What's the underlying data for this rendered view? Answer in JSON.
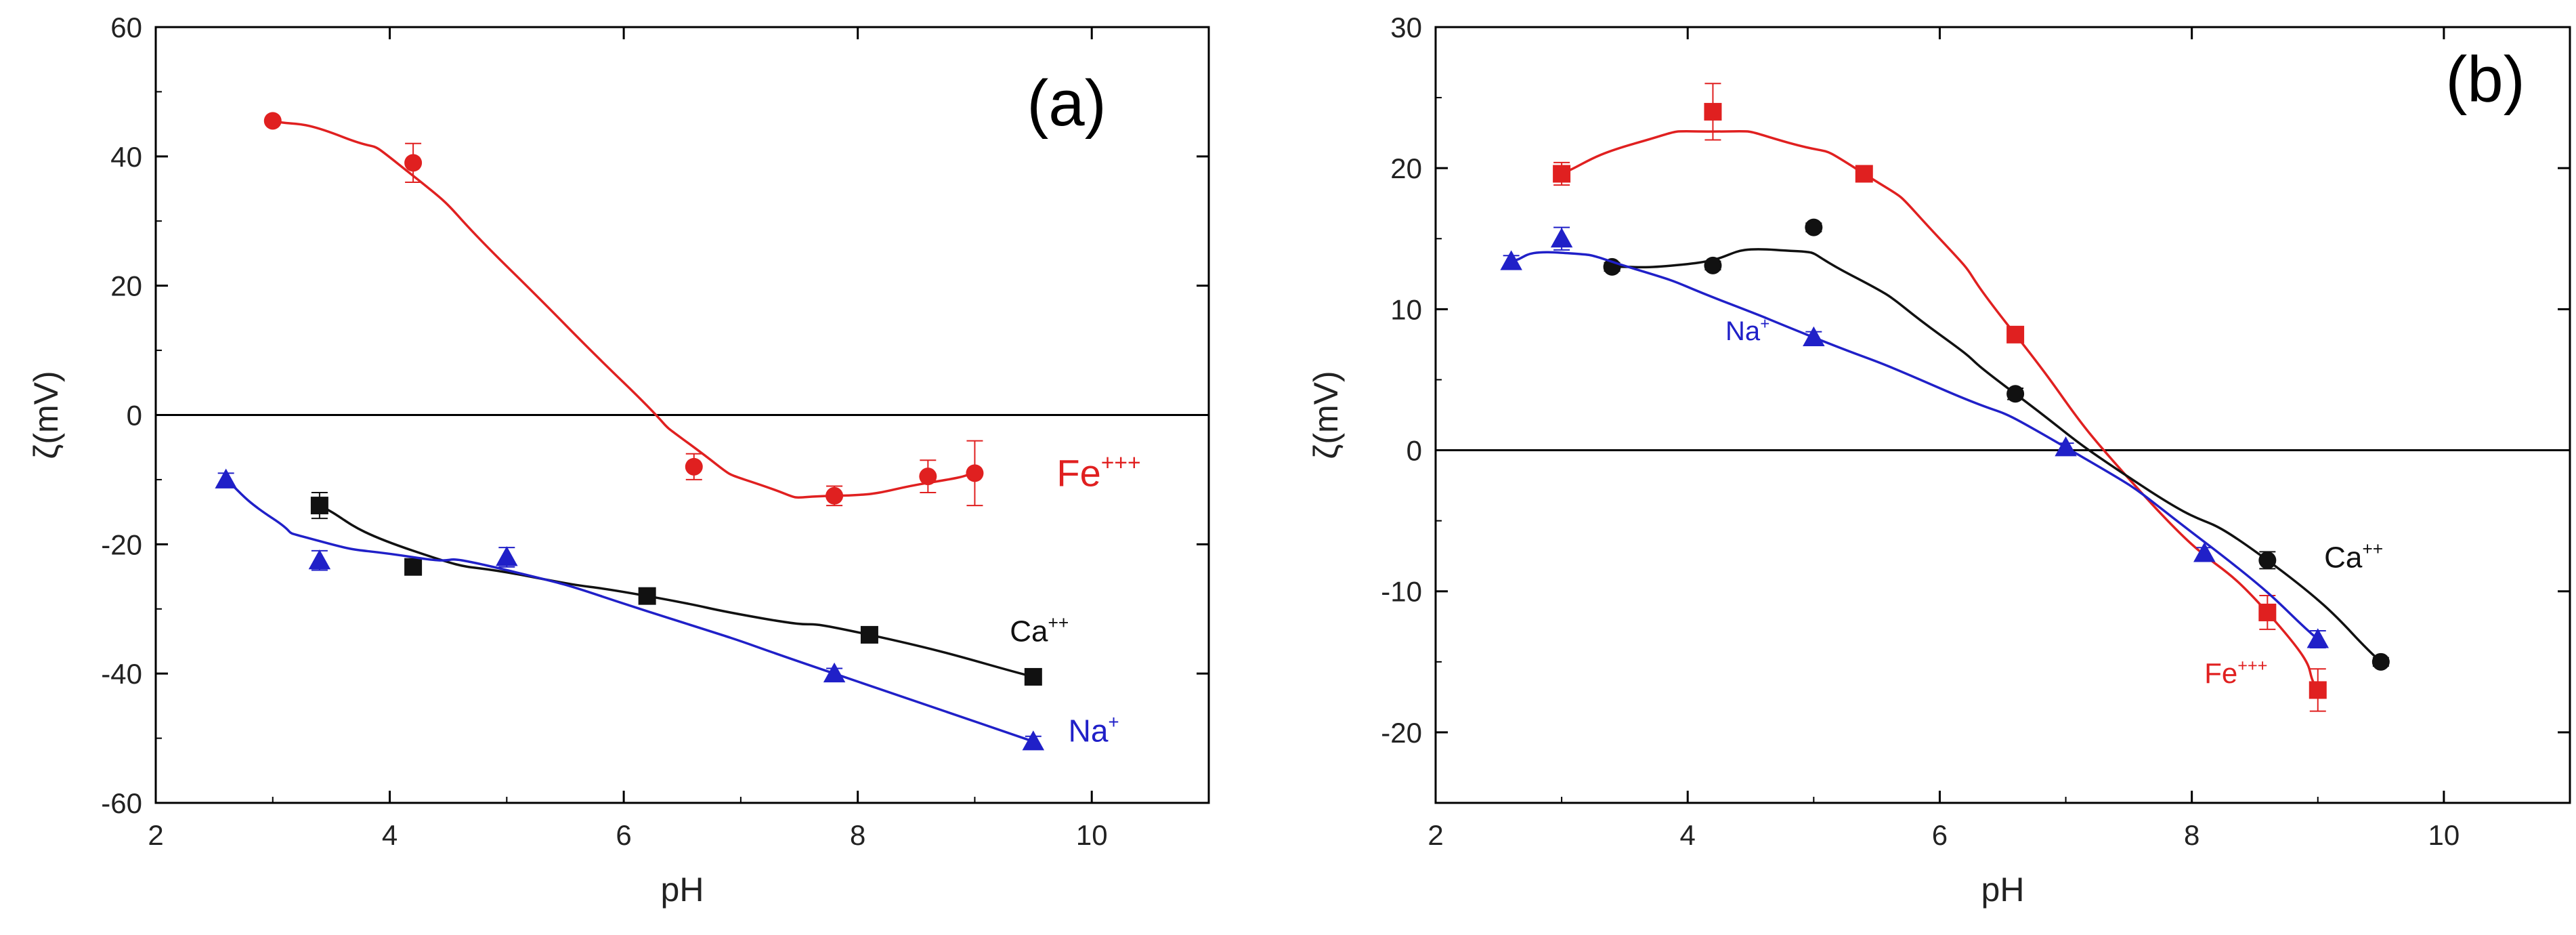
{
  "colors": {
    "fe": "#e02020",
    "ca": "#111111",
    "na": "#2020c8",
    "axis": "#000000"
  },
  "chart_data": [
    {
      "id": "a",
      "type": "scatter",
      "panel_label": "(a)",
      "xlabel": "pH",
      "ylabel": "ζ(mV)",
      "xlim": [
        2,
        11
      ],
      "ylim": [
        -60,
        60
      ],
      "xticks": [
        2,
        4,
        6,
        8,
        10
      ],
      "yticks": [
        -60,
        -40,
        -20,
        0,
        20,
        40,
        60
      ],
      "zero_line": true,
      "series": [
        {
          "name": "Fe+++",
          "label_base": "Fe",
          "label_sup": "+++",
          "marker": "circle",
          "color": "#e02020",
          "x": [
            3.0,
            4.2,
            6.6,
            7.8,
            8.6,
            9.0
          ],
          "y": [
            45.5,
            39,
            -8,
            -12.5,
            -9.5,
            -9
          ],
          "err": [
            0,
            3,
            2,
            1.5,
            2.5,
            5
          ],
          "curve_x": [
            3.0,
            3.6,
            4.2,
            5.0,
            6.0,
            6.6,
            7.2,
            7.8,
            8.6,
            9.0
          ],
          "curve_y": [
            45.5,
            43,
            37,
            23,
            5,
            -5,
            -11,
            -12.5,
            -10.5,
            -9
          ],
          "label_pos": [
            9.7,
            -11
          ],
          "label_size": 56
        },
        {
          "name": "Ca++",
          "label_base": "Ca",
          "label_sup": "++",
          "marker": "square",
          "color": "#111111",
          "x": [
            3.4,
            4.2,
            6.2,
            8.1,
            9.5
          ],
          "y": [
            -14,
            -23.5,
            -28,
            -34,
            -40.5
          ],
          "err": [
            2,
            1,
            0.8,
            0.8,
            0.8
          ],
          "curve_x": [
            3.4,
            4.2,
            5.2,
            6.2,
            7.2,
            8.1,
            9.5
          ],
          "curve_y": [
            -14,
            -21,
            -25,
            -28,
            -31.5,
            -34,
            -40.5
          ],
          "label_pos": [
            9.3,
            -35
          ],
          "label_size": 44
        },
        {
          "name": "Na+",
          "label_base": "Na",
          "label_sup": "+",
          "marker": "triangle",
          "color": "#2020c8",
          "x": [
            2.6,
            3.4,
            5.0,
            7.8,
            9.5
          ],
          "y": [
            -10,
            -22.5,
            -22,
            -40,
            -50.5
          ],
          "err": [
            1,
            1.5,
            1.5,
            0.8,
            0.8
          ],
          "curve_x": [
            2.6,
            3.0,
            3.4,
            4.2,
            5.0,
            6.4,
            7.8,
            9.5
          ],
          "curve_y": [
            -10,
            -16,
            -19.5,
            -22,
            -24,
            -31.5,
            -40,
            -50.5
          ],
          "label_pos": [
            9.8,
            -50.5
          ],
          "label_size": 46
        }
      ]
    },
    {
      "id": "b",
      "type": "scatter",
      "panel_label": "(b)",
      "xlabel": "pH",
      "ylabel": "ζ(mV)",
      "xlim": [
        2,
        11
      ],
      "ylim": [
        -25,
        30
      ],
      "xticks": [
        2,
        4,
        6,
        8,
        10
      ],
      "yticks": [
        -20,
        -10,
        0,
        10,
        20,
        30
      ],
      "zero_line": true,
      "series": [
        {
          "name": "Fe+++",
          "label_base": "Fe",
          "label_sup": "+++",
          "marker": "square",
          "color": "#e02020",
          "x": [
            3.0,
            4.2,
            5.4,
            6.6,
            8.6,
            9.0
          ],
          "y": [
            19.6,
            24,
            19.6,
            8.2,
            -11.5,
            -17
          ],
          "err": [
            0.8,
            2,
            0.5,
            0.5,
            1.2,
            1.5
          ],
          "curve_x": [
            3.0,
            3.6,
            4.2,
            4.8,
            5.4,
            6.0,
            6.6,
            7.6,
            8.6,
            9.0
          ],
          "curve_y": [
            19.6,
            21.8,
            22.6,
            21.8,
            19.6,
            15,
            8.2,
            -3,
            -11.5,
            -17
          ],
          "label_pos": [
            8.1,
            -16.5
          ],
          "label_size": 42
        },
        {
          "name": "Ca++",
          "label_base": "Ca",
          "label_sup": "++",
          "marker": "circle",
          "color": "#111111",
          "x": [
            3.4,
            4.2,
            5.0,
            6.6,
            8.6,
            9.5
          ],
          "y": [
            13,
            13.1,
            15.8,
            4,
            -7.8,
            -15
          ],
          "err": [
            0.3,
            0.3,
            0.3,
            0.4,
            0.6,
            0.3
          ],
          "curve_x": [
            3.4,
            4.0,
            4.7,
            5.3,
            6.0,
            6.6,
            7.6,
            8.6,
            9.5
          ],
          "curve_y": [
            13,
            13.2,
            14.2,
            12.4,
            8.2,
            4,
            -2.5,
            -7.8,
            -15
          ],
          "label_pos": [
            9.05,
            -8.3
          ],
          "label_size": 44
        },
        {
          "name": "Na+",
          "label_base": "Na",
          "label_sup": "+",
          "marker": "triangle",
          "color": "#2020c8",
          "x": [
            2.6,
            3.0,
            5.0,
            7.0,
            8.1,
            9.0
          ],
          "y": [
            13.4,
            15,
            8,
            0.2,
            -7.3,
            -13.4
          ],
          "err": [
            0.4,
            0.8,
            0.4,
            0.3,
            0.4,
            0.6
          ],
          "curve_x": [
            2.6,
            3.0,
            3.6,
            4.3,
            5.0,
            6.0,
            7.0,
            8.1,
            9.0
          ],
          "curve_y": [
            13.4,
            14,
            12.8,
            10.5,
            8,
            4.4,
            0.2,
            -6.5,
            -13.4
          ],
          "label_pos": [
            4.3,
            7.8
          ],
          "label_size": 40
        }
      ]
    }
  ]
}
